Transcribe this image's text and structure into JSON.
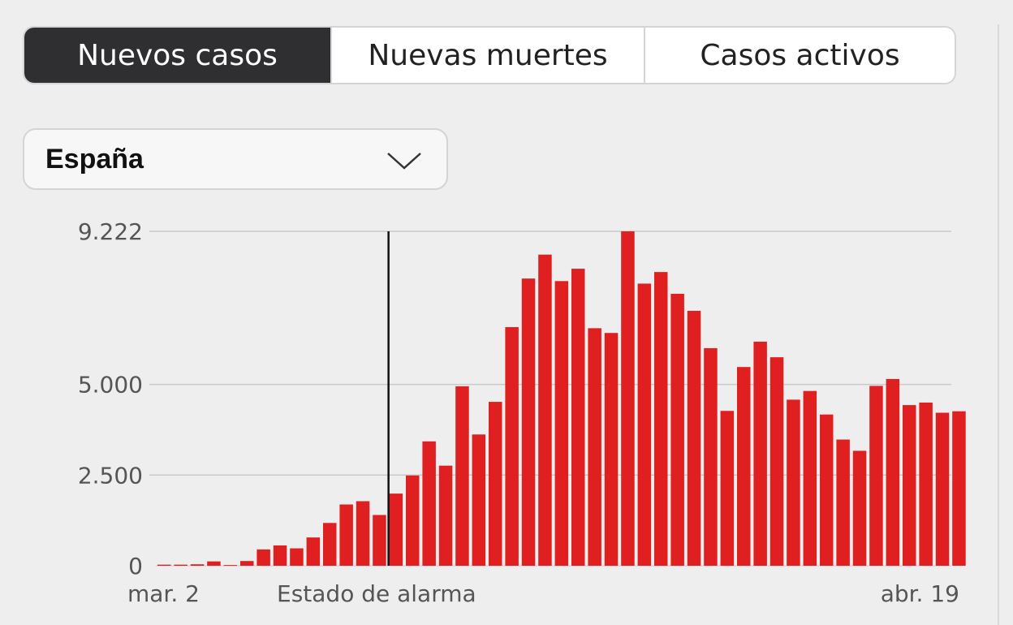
{
  "tabs": [
    {
      "label": "Nuevos casos",
      "active": true
    },
    {
      "label": "Nuevas muertes",
      "active": false
    },
    {
      "label": "Casos activos",
      "active": false
    }
  ],
  "region_select": {
    "value": "España",
    "icon": "chevron-down-icon"
  },
  "colors": {
    "bar": "#e02020",
    "active_tab": "#2f2f31",
    "grid": "#c9c9cc",
    "marker": "#111111"
  },
  "chart_data": {
    "type": "bar",
    "title": "",
    "xlabel": "",
    "ylabel": "",
    "ylim": [
      0,
      9222
    ],
    "y_ticks": [
      {
        "value": 0,
        "label": "0"
      },
      {
        "value": 2500,
        "label": "2.500"
      },
      {
        "value": 5000,
        "label": "5.000"
      },
      {
        "value": 9222,
        "label": "9.222"
      }
    ],
    "x_labels": [
      {
        "index": 0,
        "label": "mar. 2"
      },
      {
        "index": 48,
        "label": "abr. 19"
      }
    ],
    "annotation": {
      "label": "Estado de alarma",
      "index": 13.5
    },
    "grid": true,
    "categories_start": "mar. 2",
    "categories_end": "abr. 19",
    "values": [
      30,
      30,
      40,
      120,
      20,
      130,
      450,
      560,
      480,
      780,
      1180,
      1690,
      1780,
      1400,
      1990,
      2490,
      3430,
      2760,
      4950,
      3620,
      4520,
      6580,
      7920,
      8580,
      7850,
      8190,
      6550,
      6420,
      9222,
      7780,
      8100,
      7500,
      7030,
      6000,
      4270,
      5480,
      6180,
      5750,
      4580,
      4820,
      4170,
      3480,
      3170,
      4960,
      5150,
      4430,
      4500,
      4220,
      4260
    ]
  }
}
